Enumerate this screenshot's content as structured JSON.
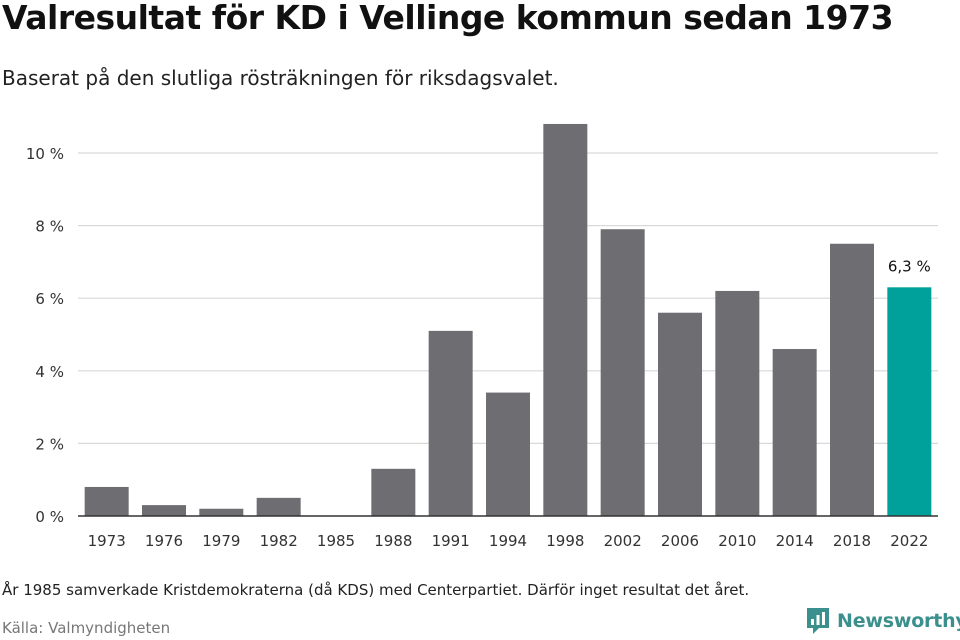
{
  "header": {
    "title": "Valresultat för KD i Vellinge kommun sedan 1973",
    "subtitle": "Baserat på den slutliga rösträkningen för riksdagsvalet."
  },
  "footer": {
    "note": "År 1985 samverkade Kristdemokraterna (då KDS) med Centerpartiet. Därför inget resultat det året.",
    "source": "Källa: Valmyndigheten",
    "brand": "Newsworthy"
  },
  "colors": {
    "bar": "#6e6d72",
    "highlight": "#00a19a",
    "grid": "#d9d9d9",
    "axis": "#333333",
    "brand": "#3b8f8c"
  },
  "chart_data": {
    "type": "bar",
    "title": "Valresultat för KD i Vellinge kommun sedan 1973",
    "subtitle": "Baserat på den slutliga rösträkningen för riksdagsvalet.",
    "categories": [
      "1973",
      "1976",
      "1979",
      "1982",
      "1985",
      "1988",
      "1991",
      "1994",
      "1998",
      "2002",
      "2006",
      "2010",
      "2014",
      "2018",
      "2022"
    ],
    "values": [
      0.8,
      0.3,
      0.2,
      0.5,
      null,
      1.3,
      5.1,
      3.4,
      10.8,
      7.9,
      5.6,
      6.2,
      4.6,
      7.5,
      6.3
    ],
    "highlight_index": 14,
    "highlight_label": "6,3 %",
    "ylim": [
      0,
      11
    ],
    "yticks": [
      0,
      2,
      4,
      6,
      8,
      10
    ],
    "ytick_labels": [
      "0 %",
      "2 %",
      "4 %",
      "6 %",
      "8 %",
      "10 %"
    ],
    "xlabel": "",
    "ylabel": "",
    "grid": true,
    "legend": "none"
  }
}
